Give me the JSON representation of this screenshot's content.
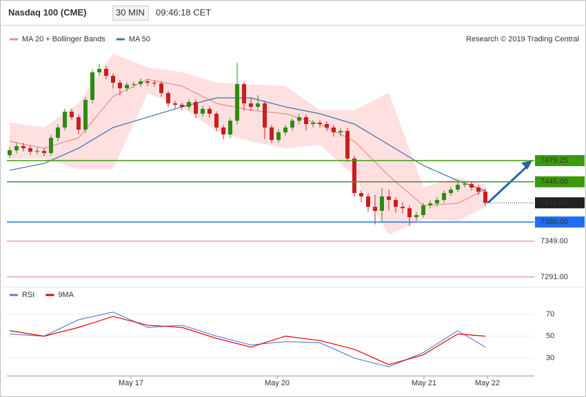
{
  "header": {
    "title": "Nasdaq 100 (CME)",
    "interval": "30 MIN",
    "time": "09:46:18 CET",
    "credit": "Research © 2019 Trading Central"
  },
  "chart_data": [
    {
      "type": "candlestick",
      "up_color": "#2e8b12",
      "down_color": "#c81e1e",
      "xlim": [
        -0.4,
        76.1
      ],
      "ylim": [
        7282,
        7661
      ],
      "open": [
        7488,
        7496.0,
        7502.7,
        7499.3,
        7493.8,
        7495.0,
        7491.5,
        7516.1,
        7532.8,
        7558.4,
        7549.5,
        7529.4,
        7577.4,
        7622.0,
        7627.6,
        7616.4,
        7605.3,
        7596.3,
        7601.9,
        7603.0,
        7607.5,
        7605.3,
        7604.0,
        7588.5,
        7571.8,
        7569.6,
        7566.2,
        7574.0,
        7555.1,
        7562.9,
        7555.1,
        7532.8,
        7521.6,
        7543.9,
        7603.0,
        7571.8,
        7566.2,
        7571.8,
        7532.8,
        7512.7,
        7525.0,
        7532.8,
        7543.9,
        7549.5,
        7538.4,
        7540.6,
        7538.4,
        7532.8,
        7525.0,
        7527.2,
        7482.6,
        7426.8,
        7421.3,
        7404.5,
        7398.0,
        7421.3,
        7415.7,
        7404.5,
        7402.3,
        7387.8,
        7391.2,
        7406.8,
        7410.1,
        7415.7,
        7426.8,
        7432.4,
        7440.2,
        7441.3,
        7435.8,
        7429.1
      ],
      "high": [
        7501,
        7508,
        7508,
        7504,
        7500,
        7500,
        7521,
        7538,
        7563,
        7563,
        7554,
        7582,
        7627,
        7636,
        7632,
        7620,
        7610,
        7606,
        7607,
        7612,
        7611,
        7609,
        7608,
        7592,
        7576,
        7573,
        7578,
        7578,
        7568,
        7567,
        7559,
        7537,
        7548,
        7637,
        7607,
        7580,
        7585,
        7576,
        7537,
        7530,
        7537,
        7548,
        7555,
        7554,
        7545,
        7545,
        7543,
        7537,
        7532,
        7532,
        7487,
        7432,
        7426,
        7424,
        7435,
        7432,
        7420,
        7412,
        7407,
        7396,
        7411,
        7415,
        7420,
        7431,
        7437,
        7445,
        7446,
        7446,
        7440,
        7434
      ],
      "low": [
        7483,
        7491,
        7494,
        7489,
        7489,
        7486,
        7487,
        7511,
        7528,
        7545,
        7522,
        7524,
        7572,
        7617,
        7611,
        7596,
        7585,
        7591,
        7597,
        7598,
        7600,
        7599,
        7583,
        7566,
        7564,
        7561,
        7561,
        7548,
        7550,
        7549,
        7527,
        7514,
        7516,
        7538,
        7560,
        7560,
        7561,
        7514,
        7508,
        7508,
        7520,
        7528,
        7538,
        7528,
        7533,
        7533,
        7527,
        7518,
        7518,
        7477,
        7421,
        7412,
        7397,
        7376,
        7380,
        7398,
        7395,
        7394,
        7374,
        7382,
        7387,
        7402,
        7405,
        7411,
        7422,
        7428,
        7436,
        7431,
        7424,
        7406
      ],
      "close": [
        7496.0,
        7502.7,
        7499.3,
        7493.8,
        7495.0,
        7491.5,
        7516.1,
        7532.8,
        7558.4,
        7549.5,
        7529.4,
        7577.4,
        7622.0,
        7627.6,
        7616.4,
        7605.3,
        7596.3,
        7601.9,
        7603.0,
        7607.5,
        7605.3,
        7604.0,
        7588.5,
        7571.8,
        7569.6,
        7566.2,
        7574.0,
        7555.1,
        7562.9,
        7555.1,
        7532.8,
        7521.6,
        7543.9,
        7603.0,
        7571.8,
        7566.2,
        7571.8,
        7532.8,
        7512.7,
        7525.0,
        7532.8,
        7543.9,
        7549.5,
        7538.4,
        7540.6,
        7538.4,
        7532.8,
        7525.0,
        7527.2,
        7482.6,
        7426.8,
        7421.3,
        7404.5,
        7398.0,
        7421.3,
        7415.7,
        7404.5,
        7402.3,
        7387.8,
        7391.2,
        7406.8,
        7410.1,
        7415.7,
        7426.8,
        7432.4,
        7440.2,
        7441.3,
        7435.8,
        7429.1,
        7411.0
      ],
      "series": [
        {
          "name": "MA 20 + Bollinger Bands",
          "color": "#f08a8a",
          "band_color": "#ffe0e0",
          "x": [
            0,
            5,
            10,
            15,
            20,
            25,
            30,
            35,
            40,
            45,
            50,
            55,
            60,
            65,
            69
          ],
          "values": [
            7510.5,
            7499.3,
            7516.1,
            7583.0,
            7610.8,
            7599.7,
            7571.8,
            7560.7,
            7555.1,
            7538.4,
            7510.5,
            7454.7,
            7406.8,
            7410.1,
            7432.4
          ],
          "upper": [
            7540.6,
            7532.8,
            7571.8,
            7652.0,
            7629.8,
            7622.0,
            7605.3,
            7601.9,
            7599.7,
            7560.7,
            7560.7,
            7588.5,
            7435.8,
            7451.4,
            7440.2
          ],
          "lower": [
            7482.6,
            7482.6,
            7465.9,
            7465.9,
            7588.5,
            7566.2,
            7527.2,
            7510.5,
            7499.3,
            7504.9,
            7454.7,
            7359.9,
            7384.5,
            7382.2,
            7404.5
          ]
        },
        {
          "name": "MA 50",
          "color": "#3a6ea5",
          "x": [
            0,
            5,
            10,
            15,
            20,
            25,
            30,
            35,
            40,
            45,
            50,
            55,
            60,
            65,
            69
          ],
          "values": [
            7463.6,
            7474.8,
            7499.3,
            7532.8,
            7549.5,
            7566.2,
            7580.7,
            7580.7,
            7566.2,
            7555.1,
            7538.4,
            7504.9,
            7471.4,
            7446.9,
            7430.2
          ]
        }
      ],
      "levels": [
        {
          "value": 7479.25,
          "color": "#3c9a0c",
          "style": "box"
        },
        {
          "value": 7445,
          "label": "7445.00",
          "color": "#3c9a0c",
          "style": "box"
        },
        {
          "value": 7411,
          "label": "7411.00",
          "color": "#222222",
          "style": "current"
        },
        {
          "value": 7380,
          "label": "7380.00",
          "color": "#1e6ff0",
          "style": "box"
        },
        {
          "value": 7349,
          "label": "7349.00",
          "color": "#e07070",
          "style": "text"
        },
        {
          "value": 7291,
          "label": "7291.00",
          "color": "#e07070",
          "style": "text"
        }
      ]
    },
    {
      "type": "line",
      "xlim": [
        -0.4,
        76.1
      ],
      "ylim": [
        14,
        80
      ],
      "yticks": [
        70,
        50,
        30
      ],
      "xticks": [
        {
          "value": 17.6,
          "label": "May 17"
        },
        {
          "value": 38.8,
          "label": "May 20"
        },
        {
          "value": 60.1,
          "label": "May 21"
        },
        {
          "value": 69.3,
          "label": "May 22"
        }
      ],
      "series": [
        {
          "name": "RSI",
          "color": "#5b7fe0",
          "x": [
            0,
            5,
            10,
            15,
            20,
            25,
            30,
            35,
            40,
            45,
            50,
            55,
            60,
            65,
            69
          ],
          "values": [
            52,
            50,
            65,
            72,
            58,
            60,
            50,
            42,
            45,
            44,
            30,
            22,
            35,
            55,
            40
          ]
        },
        {
          "name": "9MA",
          "color": "#e00000",
          "x": [
            0,
            5,
            10,
            15,
            20,
            25,
            30,
            35,
            40,
            45,
            50,
            55,
            60,
            65,
            69
          ],
          "values": [
            55,
            50,
            58,
            68,
            60,
            58,
            48,
            40,
            50,
            46,
            38,
            24,
            33,
            52,
            50
          ]
        }
      ]
    }
  ]
}
